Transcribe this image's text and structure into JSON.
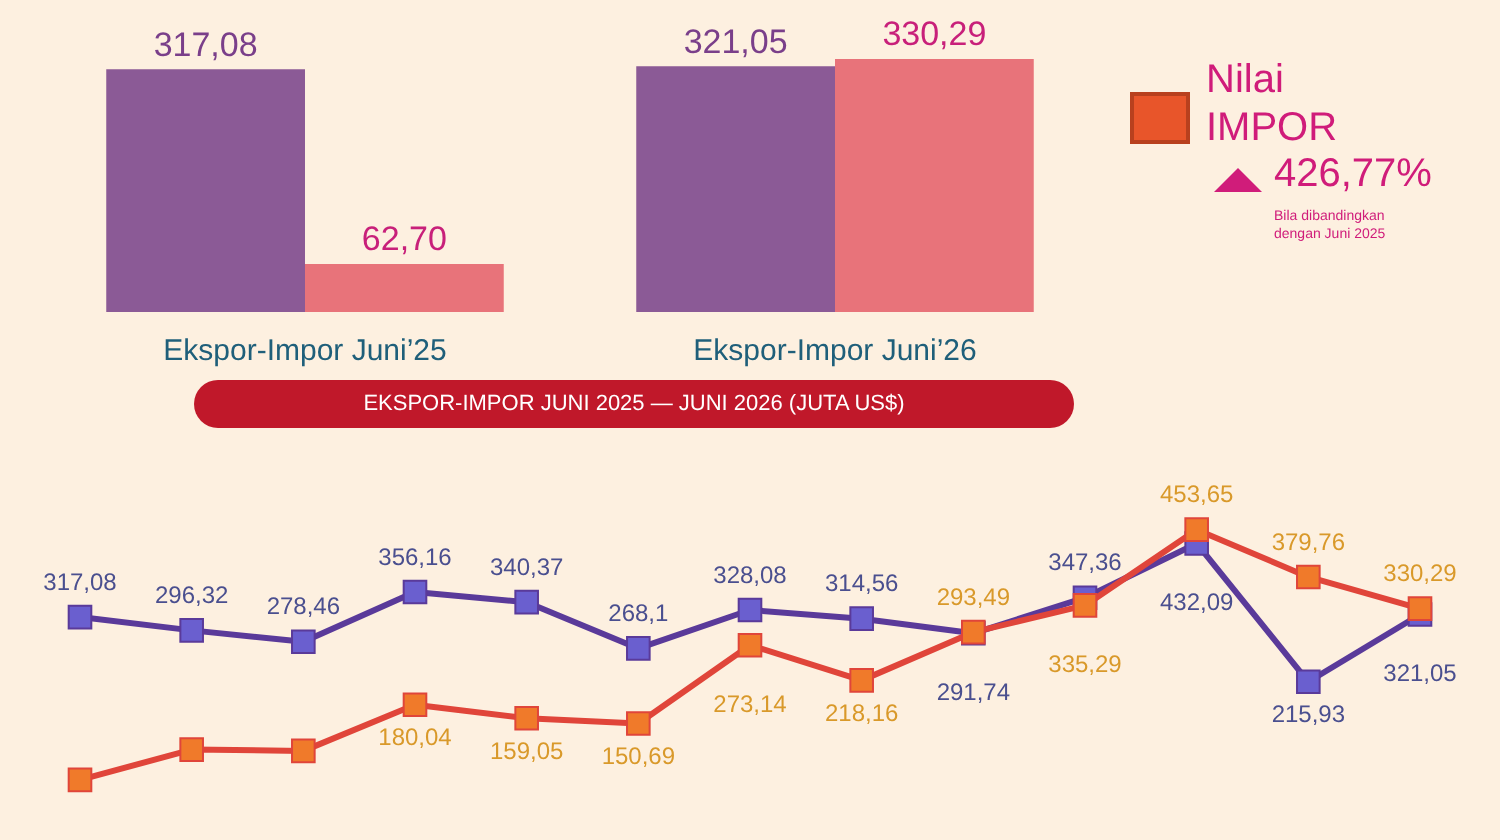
{
  "chart_data": [
    {
      "type": "bar",
      "categories": [
        "Ekspor-Impor Juni’25",
        "Ekspor-Impor Juni’26"
      ],
      "series": [
        {
          "color": "#8b5a96",
          "values": [
            317.08,
            321.05
          ],
          "value_labels": [
            "317,08",
            "321,05"
          ]
        },
        {
          "color": "#e8737a",
          "values": [
            62.7,
            330.29
          ],
          "value_labels": [
            "62,70",
            "330,29"
          ]
        }
      ],
      "annotations": [
        "Nilai IMPOR",
        "426,77%",
        "Bila dibandingkan dengan Juni 2025"
      ],
      "legend": false,
      "grid": false
    },
    {
      "type": "line",
      "title": "EKSPOR-IMPOR JUNI 2025 — JUNI 2026 (JUTA US$)",
      "categories": [
        null,
        null,
        null,
        null,
        null,
        null,
        null,
        null,
        null,
        null,
        null,
        null,
        null
      ],
      "series": [
        {
          "color": "#5a3a9a",
          "values": [
            317.08,
            296.32,
            278.46,
            356.16,
            340.37,
            268.1,
            328.08,
            314.56,
            291.74,
            347.36,
            432.09,
            215.93,
            321.05
          ],
          "value_labels": [
            "317,08",
            "296,32",
            "278,46",
            "356,16",
            "340,37",
            "268,1",
            "328,08",
            "314,56",
            "291,74",
            "347,36",
            "432,09",
            "215,93",
            "321,05"
          ]
        },
        {
          "color": "#e0453a",
          "values": [
            62.7,
            110,
            108,
            180.04,
            159.05,
            150.69,
            273.14,
            218.16,
            293.49,
            335.29,
            453.65,
            379.76,
            330.29
          ],
          "value_labels": [
            null,
            null,
            null,
            "180,04",
            "159,05",
            "150,69",
            "273,14",
            "218,16",
            "293,49",
            "335,29",
            "453,65",
            "379,76",
            "330,29"
          ]
        }
      ],
      "marker": "square",
      "line_style": "solid",
      "legend": false,
      "grid": false
    }
  ]
}
